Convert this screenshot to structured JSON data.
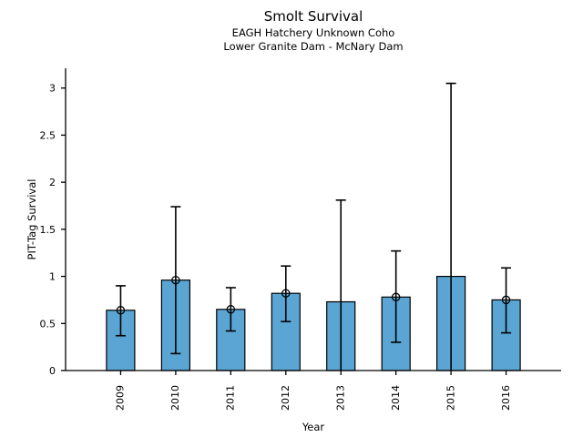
{
  "chart_data": {
    "type": "bar",
    "title": "Smolt Survival",
    "subtitle_line1": "EAGH Hatchery Unknown Coho",
    "subtitle_line2": "Lower Granite Dam - McNary Dam",
    "xlabel": "Year",
    "ylabel": "PIT-Tag Survival",
    "categories": [
      "2009",
      "2010",
      "2011",
      "2012",
      "2013",
      "2014",
      "2015",
      "2016"
    ],
    "values": [
      0.64,
      0.96,
      0.65,
      0.82,
      0.73,
      0.78,
      1.0,
      0.75
    ],
    "error_low": [
      0.37,
      0.18,
      0.42,
      0.52,
      0,
      0.3,
      0,
      0.4
    ],
    "error_high": [
      0.9,
      1.74,
      0.88,
      1.11,
      1.81,
      1.27,
      3.05,
      1.09
    ],
    "point_markers": [
      true,
      true,
      true,
      true,
      false,
      true,
      false,
      true
    ],
    "ytick_values": [
      0,
      0.5,
      1,
      1.5,
      2,
      2.5,
      3
    ],
    "ytick_labels": [
      "0",
      "0.5",
      "1",
      "1.5",
      "2",
      "2.5",
      "3"
    ],
    "ylim": [
      0,
      3.21
    ],
    "grid": false,
    "legend_position": "none",
    "colors": {
      "bar_fill": "#5AA5D3",
      "bar_edge": "#000000",
      "error_bar": "#000000",
      "axis": "#000000",
      "text": "#000000",
      "background": "#FFFFFF"
    }
  }
}
